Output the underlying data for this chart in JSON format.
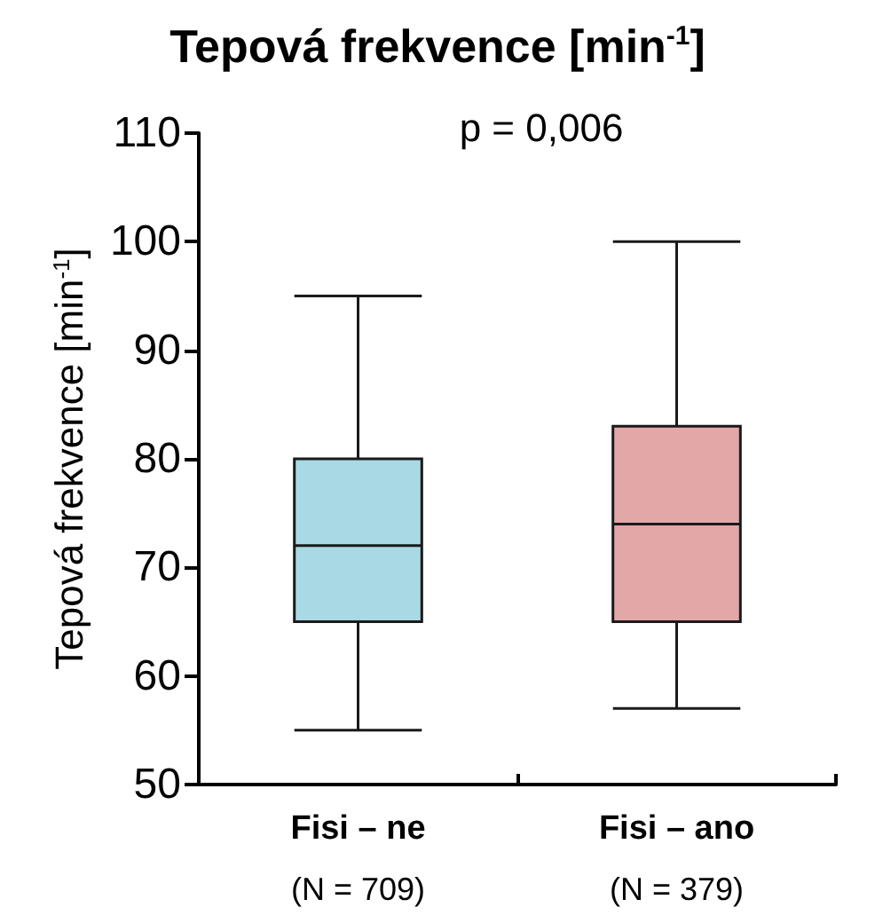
{
  "chart_data": {
    "type": "box",
    "title": "Tepová frekvence [min$^{-1}$]",
    "ylabel": "Tepová frekvence [min$^{-1}$]",
    "categories": [
      "Fisi – ne\n(N = 709)",
      "Fisi – ano\n(N = 379)"
    ],
    "boxes": [
      {
        "low": 55,
        "q1": 65,
        "median": 72,
        "q3": 80,
        "high": 95
      },
      {
        "low": 57,
        "q1": 65,
        "median": 74,
        "q3": 83,
        "high": 100
      }
    ],
    "colors": [
      "#a9d9e4",
      "#e3a7a8"
    ],
    "ylim": [
      50,
      110
    ],
    "yticks": [
      50,
      60,
      70,
      80,
      90,
      100,
      110
    ],
    "annotations": [
      "p = 0,006"
    ],
    "grid": false
  }
}
